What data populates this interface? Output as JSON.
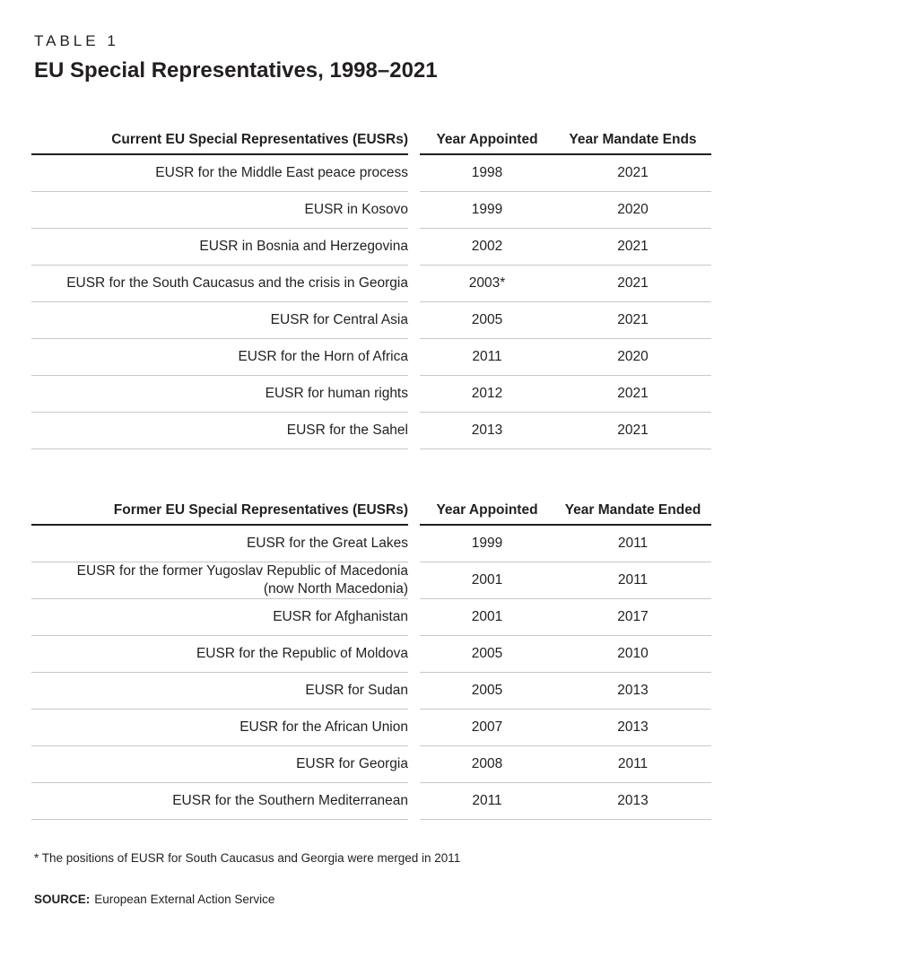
{
  "page": {
    "kicker": "TABLE 1",
    "title": "EU Special Representatives, 1998–2021",
    "footnote": "* The positions of EUSR for South Caucasus and Georgia were merged in 2011",
    "source_label": "SOURCE:",
    "source_text": "European External Action Service"
  },
  "colors": {
    "text": "#231f20",
    "header_rule": "#231f20",
    "row_rule": "#c8c8c8",
    "background": "#ffffff"
  },
  "tables": [
    {
      "name": "current-eusrs",
      "columns": [
        "Current EU Special Representatives (EUSRs)",
        "Year Appointed",
        "Year Mandate Ends"
      ],
      "rows": [
        [
          "EUSR for the Middle East peace process",
          "1998",
          "2021"
        ],
        [
          "EUSR in Kosovo",
          "1999",
          "2020"
        ],
        [
          "EUSR in Bosnia and Herzegovina",
          "2002",
          "2021"
        ],
        [
          "EUSR for the South Caucasus and the crisis in Georgia",
          "2003*",
          "2021"
        ],
        [
          "EUSR for Central Asia",
          "2005",
          "2021"
        ],
        [
          "EUSR for the Horn of Africa",
          "2011",
          "2020"
        ],
        [
          "EUSR for human rights",
          "2012",
          "2021"
        ],
        [
          "EUSR for the Sahel",
          "2013",
          "2021"
        ]
      ]
    },
    {
      "name": "former-eusrs",
      "columns": [
        "Former EU Special Representatives (EUSRs)",
        "Year Appointed",
        "Year Mandate Ended"
      ],
      "rows": [
        [
          "EUSR for the Great Lakes",
          "1999",
          "2011"
        ],
        [
          "EUSR for the former Yugoslav Republic of Macedonia\n(now North Macedonia)",
          "2001",
          "2011"
        ],
        [
          "EUSR for Afghanistan",
          "2001",
          "2017"
        ],
        [
          "EUSR for the Republic of Moldova",
          "2005",
          "2010"
        ],
        [
          "EUSR for Sudan",
          "2005",
          "2013"
        ],
        [
          "EUSR for the African Union",
          "2007",
          "2013"
        ],
        [
          "EUSR for Georgia",
          "2008",
          "2011"
        ],
        [
          "EUSR for the Southern Mediterranean",
          "2011",
          "2013"
        ]
      ]
    }
  ]
}
